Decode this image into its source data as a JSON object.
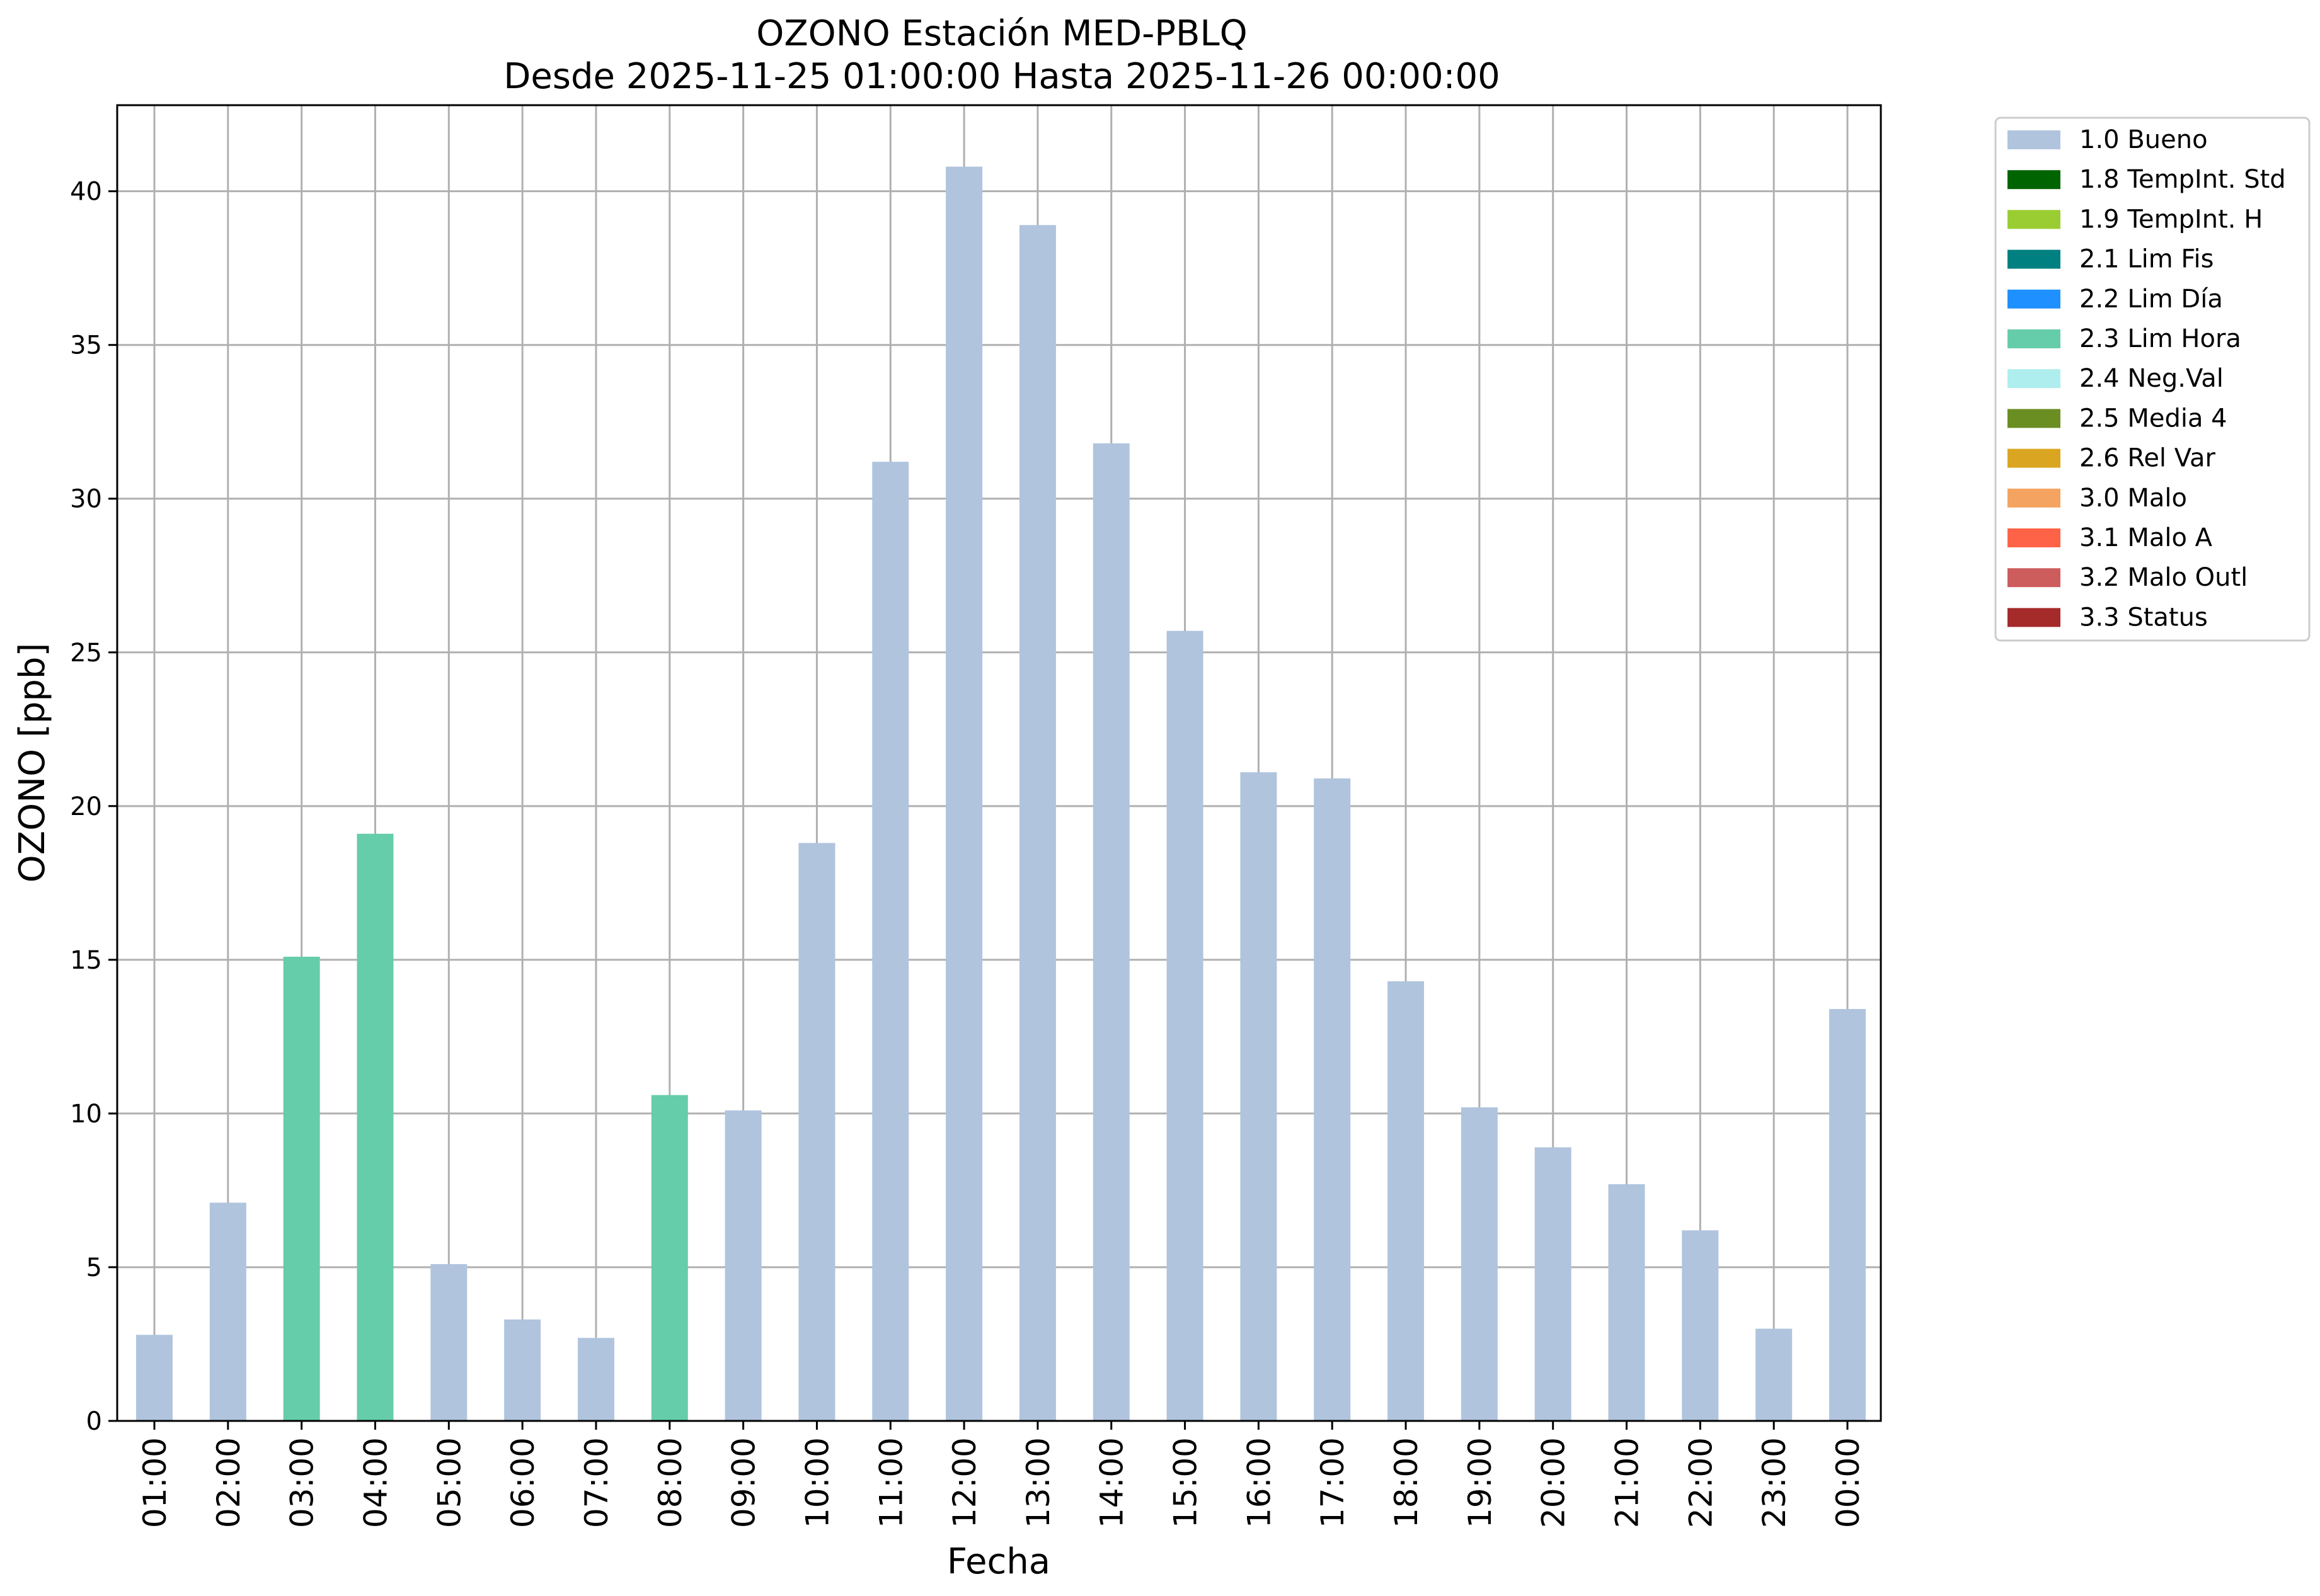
{
  "chart_data": {
    "type": "bar",
    "title": "OZONO Estación MED-PBLQ",
    "subtitle": "Desde 2025-11-25 01:00:00 Hasta 2025-11-26 00:00:00",
    "xlabel": "Fecha",
    "ylabel": "OZONO [ppb]",
    "ylim": [
      0,
      42.8
    ],
    "yticks": [
      0,
      5,
      10,
      15,
      20,
      25,
      30,
      35,
      40
    ],
    "grid": true,
    "legend_position": "outside-top-right",
    "categories": [
      "01:00",
      "02:00",
      "03:00",
      "04:00",
      "05:00",
      "06:00",
      "07:00",
      "08:00",
      "09:00",
      "10:00",
      "11:00",
      "12:00",
      "13:00",
      "14:00",
      "15:00",
      "16:00",
      "17:00",
      "18:00",
      "19:00",
      "20:00",
      "21:00",
      "22:00",
      "23:00",
      "00:00"
    ],
    "values": [
      2.8,
      7.1,
      15.1,
      19.1,
      5.1,
      3.3,
      2.7,
      10.6,
      10.1,
      18.8,
      31.2,
      40.8,
      38.9,
      31.8,
      25.7,
      21.1,
      20.9,
      14.3,
      10.2,
      8.9,
      7.7,
      6.2,
      3.0,
      13.4
    ],
    "flags": [
      "1.0 Bueno",
      "1.0 Bueno",
      "2.3 Lim Hora",
      "2.3 Lim Hora",
      "1.0 Bueno",
      "1.0 Bueno",
      "1.0 Bueno",
      "2.3 Lim Hora",
      "1.0 Bueno",
      "1.0 Bueno",
      "1.0 Bueno",
      "1.0 Bueno",
      "1.0 Bueno",
      "1.0 Bueno",
      "1.0 Bueno",
      "1.0 Bueno",
      "1.0 Bueno",
      "1.0 Bueno",
      "1.0 Bueno",
      "1.0 Bueno",
      "1.0 Bueno",
      "1.0 Bueno",
      "1.0 Bueno",
      "1.0 Bueno"
    ],
    "legend": [
      {
        "label": "1.0 Bueno",
        "color": "#b0c4de"
      },
      {
        "label": "1.8 TempInt. Std",
        "color": "#006400"
      },
      {
        "label": "1.9 TempInt. H",
        "color": "#9acd32"
      },
      {
        "label": "2.1 Lim Fis",
        "color": "#008080"
      },
      {
        "label": "2.2 Lim Día",
        "color": "#1e90ff"
      },
      {
        "label": "2.3 Lim Hora",
        "color": "#66cdaa"
      },
      {
        "label": "2.4 Neg.Val",
        "color": "#afeeee"
      },
      {
        "label": "2.5 Media 4",
        "color": "#6b8e23"
      },
      {
        "label": "2.6 Rel Var",
        "color": "#daa520"
      },
      {
        "label": "3.0 Malo",
        "color": "#f4a460"
      },
      {
        "label": "3.1 Malo A",
        "color": "#ff6347"
      },
      {
        "label": "3.2 Malo Outl",
        "color": "#cd5c5c"
      },
      {
        "label": "3.3 Status",
        "color": "#a52a2a"
      }
    ]
  }
}
